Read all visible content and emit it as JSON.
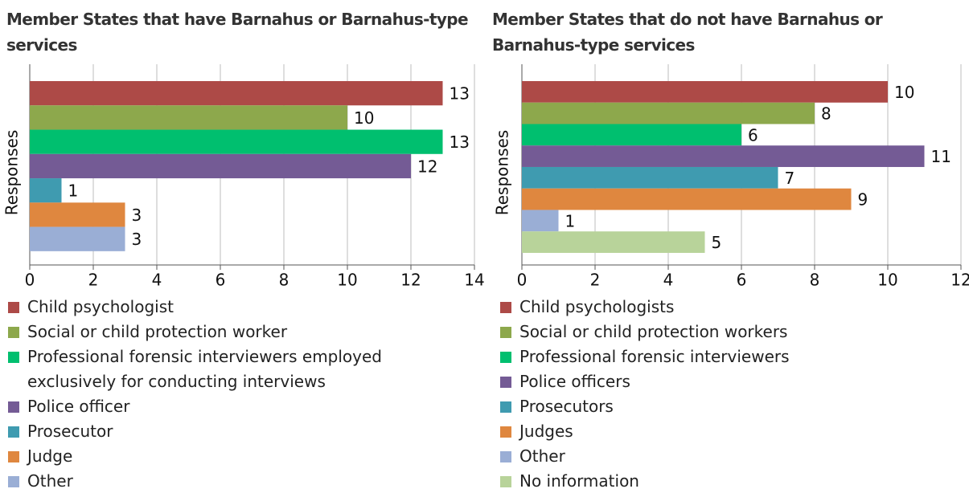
{
  "chart_data": [
    {
      "type": "bar",
      "orientation": "horizontal",
      "title": "Member States that have Barnahus or Barnahus-type services",
      "ylabel": "Responses",
      "categories": [
        "Child psychologist",
        "Social or child protection worker",
        "Professional forensic interviewers employed exclusively for conducting interviews",
        "Police officer",
        "Prosecutor",
        "Judge",
        "Other"
      ],
      "values": [
        13,
        10,
        13,
        12,
        1,
        3,
        3
      ],
      "colors": [
        "#ad4a47",
        "#8da84c",
        "#00bf6f",
        "#745b95",
        "#3f9bb0",
        "#df873f",
        "#9aaed5"
      ],
      "xlim": [
        0,
        14
      ],
      "xticks": [
        0,
        2,
        4,
        6,
        8,
        10,
        12,
        14
      ],
      "grid": true
    },
    {
      "type": "bar",
      "orientation": "horizontal",
      "title": "Member States that do not have Barnahus or Barnahus-type services",
      "ylabel": "Responses",
      "categories": [
        "Child psychologists",
        "Social or child protection workers",
        "Professional forensic interviewers",
        "Police officers",
        "Prosecutors",
        "Judges",
        "Other",
        "No information"
      ],
      "values": [
        10,
        8,
        6,
        11,
        7,
        9,
        1,
        5
      ],
      "colors": [
        "#ad4a47",
        "#8da84c",
        "#00bf6f",
        "#745b95",
        "#3f9bb0",
        "#df873f",
        "#9aaed5",
        "#b8d39a"
      ],
      "xlim": [
        0,
        12
      ],
      "xticks": [
        0,
        2,
        4,
        6,
        8,
        10,
        12
      ],
      "grid": true
    }
  ]
}
